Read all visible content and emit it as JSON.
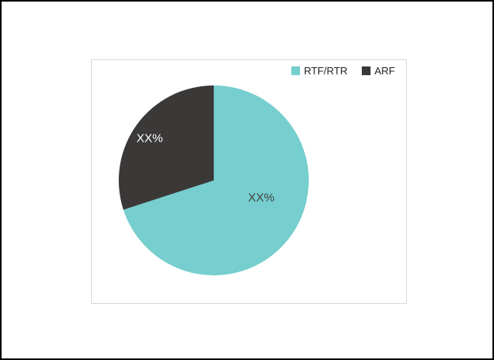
{
  "figure": {
    "background": "#FFFFFF",
    "outer_border_color": "#000000"
  },
  "chart": {
    "panel_border_color": "#D9D9D9"
  },
  "chart_data": {
    "type": "pie",
    "title": "",
    "categories": [
      "RTF/RTR",
      "ARF"
    ],
    "values": [
      70,
      30
    ],
    "values_estimated_from_arc_angles": true,
    "displayed_labels": [
      "XX%",
      "XX%"
    ],
    "legend_position": "top-right",
    "start_angle_deg": 0,
    "direction": "clockwise",
    "series": [
      {
        "name": "RTF/RTR",
        "value": 70,
        "label": "XX%",
        "color": "#76CECE",
        "label_color": "#404040"
      },
      {
        "name": "ARF",
        "value": 30,
        "label": "XX%",
        "color": "#3B3838",
        "label_color": "#FFFFFF"
      }
    ]
  }
}
